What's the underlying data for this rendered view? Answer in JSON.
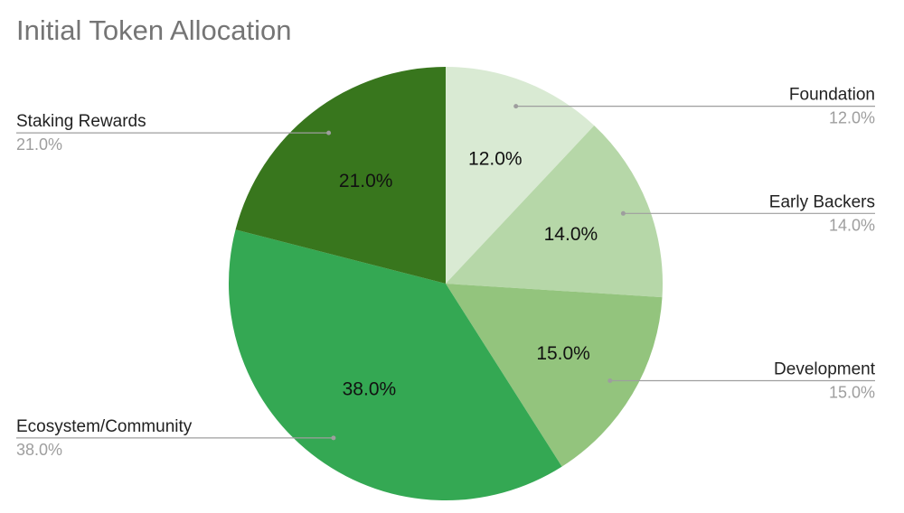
{
  "chart_data": {
    "type": "pie",
    "title": "Initial Token Allocation",
    "categories": [
      "Foundation",
      "Early Backers",
      "Development",
      "Ecosystem/Community",
      "Staking Rewards"
    ],
    "values": [
      12.0,
      14.0,
      15.0,
      38.0,
      21.0
    ],
    "value_labels": [
      "12.0%",
      "14.0%",
      "15.0%",
      "38.0%",
      "21.0%"
    ],
    "colors": [
      "#d9ead3",
      "#b6d7a8",
      "#93c47d",
      "#34a853",
      "#38761d"
    ],
    "legend": "outside labels with leader lines"
  }
}
